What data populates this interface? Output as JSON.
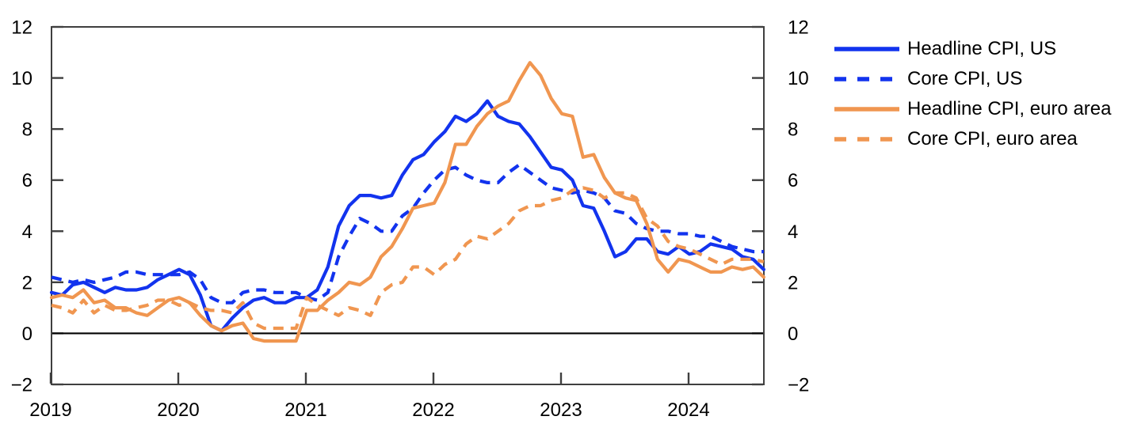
{
  "figure": {
    "background_color": "#ffffff",
    "axis_color": "#3f3f3f",
    "zero_line_color": "#000000"
  },
  "chart_data": {
    "type": "line",
    "title": "",
    "xlabel": "",
    "ylabel": "",
    "frequency": "monthly",
    "x_start": "2019-01",
    "x_end": "2024-08",
    "x_tick_labels": [
      "2019",
      "2020",
      "2021",
      "2022",
      "2023",
      "2024"
    ],
    "y_ticks": [
      -2,
      0,
      2,
      4,
      6,
      8,
      10,
      12
    ],
    "y_tick_labels": [
      "−2",
      "0",
      "2",
      "4",
      "6",
      "8",
      "10",
      "12"
    ],
    "ylim": [
      -2,
      12
    ],
    "y_axis_mirrored_right": true,
    "grid": false,
    "zero_line": true,
    "legend_position": "right-top",
    "series": [
      {
        "name": "Headline CPI, US",
        "color": "#1233ee",
        "style": "solid",
        "values": [
          1.6,
          1.5,
          1.9,
          2.0,
          1.8,
          1.6,
          1.8,
          1.7,
          1.7,
          1.8,
          2.1,
          2.3,
          2.5,
          2.3,
          1.5,
          0.3,
          0.1,
          0.6,
          1.0,
          1.3,
          1.4,
          1.2,
          1.2,
          1.4,
          1.4,
          1.7,
          2.6,
          4.2,
          5.0,
          5.4,
          5.4,
          5.3,
          5.4,
          6.2,
          6.8,
          7.0,
          7.5,
          7.9,
          8.5,
          8.3,
          8.6,
          9.1,
          8.5,
          8.3,
          8.2,
          7.7,
          7.1,
          6.5,
          6.4,
          6.0,
          5.0,
          4.9,
          4.0,
          3.0,
          3.2,
          3.7,
          3.7,
          3.2,
          3.1,
          3.4,
          3.1,
          3.2,
          3.5,
          3.4,
          3.3,
          3.0,
          2.9,
          2.5
        ]
      },
      {
        "name": "Core CPI, US",
        "color": "#1233ee",
        "style": "dashed",
        "values": [
          2.2,
          2.1,
          2.0,
          2.1,
          2.0,
          2.1,
          2.2,
          2.4,
          2.4,
          2.3,
          2.3,
          2.3,
          2.3,
          2.4,
          2.1,
          1.4,
          1.2,
          1.2,
          1.6,
          1.7,
          1.7,
          1.6,
          1.6,
          1.6,
          1.4,
          1.3,
          1.6,
          3.0,
          3.8,
          4.5,
          4.3,
          4.0,
          4.0,
          4.6,
          4.9,
          5.5,
          6.0,
          6.4,
          6.5,
          6.2,
          6.0,
          5.9,
          5.9,
          6.3,
          6.6,
          6.3,
          6.0,
          5.7,
          5.6,
          5.5,
          5.6,
          5.5,
          5.3,
          4.8,
          4.7,
          4.3,
          4.1,
          4.0,
          4.0,
          3.9,
          3.9,
          3.8,
          3.8,
          3.6,
          3.4,
          3.3,
          3.2,
          3.2
        ]
      },
      {
        "name": "Headline CPI, euro area",
        "color": "#f09650",
        "style": "solid",
        "values": [
          1.4,
          1.5,
          1.4,
          1.7,
          1.2,
          1.3,
          1.0,
          1.0,
          0.8,
          0.7,
          1.0,
          1.3,
          1.4,
          1.2,
          0.7,
          0.3,
          0.1,
          0.3,
          0.4,
          -0.2,
          -0.3,
          -0.3,
          -0.3,
          -0.3,
          0.9,
          0.9,
          1.3,
          1.6,
          2.0,
          1.9,
          2.2,
          3.0,
          3.4,
          4.1,
          4.9,
          5.0,
          5.1,
          5.9,
          7.4,
          7.4,
          8.1,
          8.6,
          8.9,
          9.1,
          9.9,
          10.6,
          10.1,
          9.2,
          8.6,
          8.5,
          6.9,
          7.0,
          6.1,
          5.5,
          5.3,
          5.2,
          4.3,
          2.9,
          2.4,
          2.9,
          2.8,
          2.6,
          2.4,
          2.4,
          2.6,
          2.5,
          2.6,
          2.2
        ]
      },
      {
        "name": "Core CPI, euro area",
        "color": "#f09650",
        "style": "dashed",
        "values": [
          1.1,
          1.0,
          0.8,
          1.3,
          0.8,
          1.1,
          0.9,
          0.9,
          1.0,
          1.1,
          1.3,
          1.3,
          1.1,
          1.2,
          1.0,
          0.9,
          0.9,
          0.8,
          1.2,
          0.4,
          0.2,
          0.2,
          0.2,
          0.2,
          1.4,
          1.1,
          0.9,
          0.7,
          1.0,
          0.9,
          0.7,
          1.6,
          1.9,
          2.0,
          2.6,
          2.6,
          2.3,
          2.7,
          2.9,
          3.5,
          3.8,
          3.7,
          4.0,
          4.3,
          4.8,
          5.0,
          5.0,
          5.2,
          5.3,
          5.6,
          5.7,
          5.6,
          5.3,
          5.5,
          5.5,
          5.3,
          4.5,
          4.2,
          3.6,
          3.4,
          3.3,
          3.1,
          2.9,
          2.7,
          2.9,
          2.9,
          2.9,
          2.8
        ]
      }
    ]
  }
}
